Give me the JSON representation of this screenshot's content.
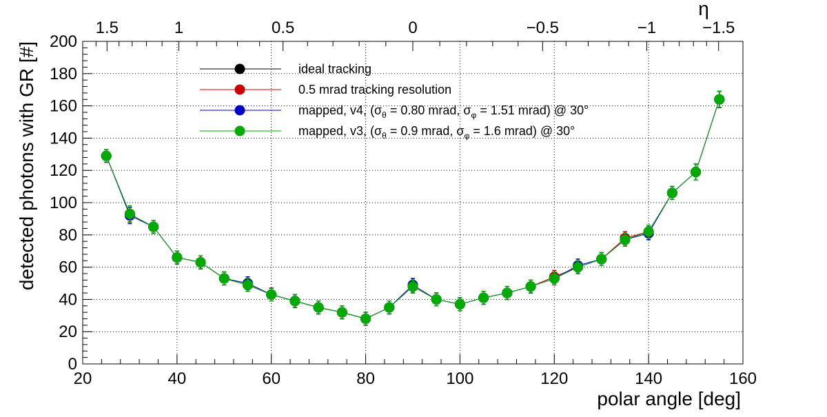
{
  "chart_data": {
    "type": "scatter",
    "xlabel": "polar angle [deg]",
    "ylabel": "detected photons with GR [#]",
    "top_axis_label": "η",
    "xlim": [
      20,
      160
    ],
    "ylim": [
      0,
      200
    ],
    "x_ticks": [
      20,
      40,
      60,
      80,
      100,
      120,
      140,
      160
    ],
    "y_ticks": [
      0,
      20,
      40,
      60,
      80,
      100,
      120,
      140,
      160,
      180,
      200
    ],
    "top_ticks": [
      {
        "label": "1.5",
        "eta": 1.5
      },
      {
        "label": "1",
        "eta": 1.0
      },
      {
        "label": "0.5",
        "eta": 0.5
      },
      {
        "label": "0",
        "eta": 0.0
      },
      {
        "label": "−0.5",
        "eta": -0.5
      },
      {
        "label": "−1",
        "eta": -1.0
      },
      {
        "label": "−1.5",
        "eta": -1.5
      }
    ],
    "grid": true,
    "legend_position": "top-center",
    "x": [
      25,
      30,
      35,
      40,
      45,
      50,
      55,
      60,
      65,
      70,
      75,
      80,
      85,
      90,
      95,
      100,
      105,
      110,
      115,
      120,
      125,
      130,
      135,
      140,
      145,
      150,
      155
    ],
    "series": [
      {
        "name": "ideal tracking",
        "color": "#000000",
        "values": [
          129,
          93,
          85,
          66,
          63,
          53,
          49,
          43,
          39,
          35,
          32,
          28,
          35,
          48,
          40,
          37,
          41,
          44,
          48,
          53,
          60,
          65,
          77,
          82,
          106,
          119,
          164
        ],
        "errors": [
          4,
          5,
          4,
          4,
          4,
          4,
          4,
          4,
          4,
          4,
          4,
          4,
          4,
          4,
          4,
          4,
          4,
          4,
          4,
          4,
          4,
          4,
          4,
          4,
          4,
          5,
          5
        ]
      },
      {
        "name": "0.5 mrad tracking resolution",
        "color": "#cc0000",
        "values": [
          129,
          93,
          85,
          66,
          63,
          53,
          49,
          43,
          39,
          35,
          32,
          28,
          35,
          48,
          40,
          37,
          41,
          44,
          48,
          54,
          60,
          65,
          78,
          82,
          106,
          119,
          164
        ],
        "errors": [
          4,
          5,
          4,
          4,
          4,
          4,
          4,
          4,
          4,
          4,
          4,
          4,
          4,
          4,
          4,
          4,
          4,
          4,
          4,
          4,
          4,
          4,
          4,
          4,
          4,
          5,
          5
        ]
      },
      {
        "name": "mapped, v4, (σ_θ = 0.80 mrad, σ_φ = 1.51 mrad) @ 30°",
        "color": "#0000cc",
        "values": [
          129,
          92,
          85,
          66,
          63,
          53,
          50,
          43,
          39,
          35,
          32,
          28,
          35,
          49,
          40,
          37,
          41,
          44,
          48,
          53,
          61,
          65,
          77,
          81,
          106,
          119,
          164
        ],
        "errors": [
          4,
          5,
          4,
          4,
          4,
          4,
          4,
          4,
          4,
          4,
          4,
          4,
          4,
          4,
          4,
          4,
          4,
          4,
          4,
          4,
          4,
          4,
          4,
          4,
          4,
          5,
          5
        ]
      },
      {
        "name": "mapped, v3, (σ_θ = 0.9 mrad, σ_φ = 1.6 mrad) @ 30°",
        "color": "#00aa00",
        "values": [
          129,
          93,
          85,
          66,
          63,
          53,
          49,
          43,
          39,
          35,
          32,
          28,
          35,
          48,
          40,
          37,
          41,
          44,
          48,
          53,
          60,
          65,
          77,
          82,
          106,
          119,
          164
        ],
        "errors": [
          4,
          5,
          4,
          4,
          4,
          4,
          4,
          4,
          4,
          4,
          4,
          4,
          4,
          4,
          4,
          4,
          4,
          4,
          4,
          4,
          4,
          4,
          4,
          4,
          4,
          5,
          5
        ]
      }
    ],
    "legend": [
      {
        "parts": [
          {
            "t": "ideal tracking"
          }
        ]
      },
      {
        "parts": [
          {
            "t": "0.5 mrad tracking resolution"
          }
        ]
      },
      {
        "parts": [
          {
            "t": "mapped, v4, (σ"
          },
          {
            "t": "θ",
            "sub": true
          },
          {
            "t": " = 0.80 mrad, σ"
          },
          {
            "t": "φ",
            "sub": true
          },
          {
            "t": " = 1.51 mrad) @ 30°"
          }
        ]
      },
      {
        "parts": [
          {
            "t": "mapped, v3, (σ"
          },
          {
            "t": "θ",
            "sub": true
          },
          {
            "t": " = 0.9 mrad, σ"
          },
          {
            "t": "φ",
            "sub": true
          },
          {
            "t": " = 1.6 mrad) @ 30°"
          }
        ]
      }
    ]
  }
}
